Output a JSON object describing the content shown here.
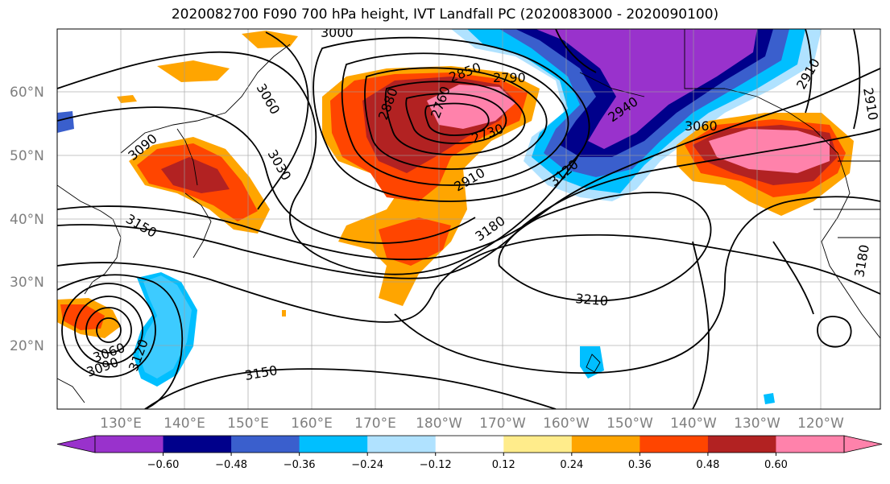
{
  "title": "2020082700 F090 700 hPa height, IVT Landfall PC (2020083000 - 2020090100)",
  "latitudes": [
    "60°N",
    "50°N",
    "40°N",
    "30°N",
    "20°N"
  ],
  "longitudes": [
    "130°E",
    "140°E",
    "150°E",
    "160°E",
    "170°E",
    "180°W",
    "170°W",
    "160°W",
    "150°W",
    "140°W",
    "130°W",
    "120°W"
  ],
  "colorbar": {
    "colors": [
      "#9932cc",
      "#00008b",
      "#3a5fcd",
      "#00bfff",
      "#b0e2ff",
      "#ffffff",
      "#ffec8b",
      "#ffa500",
      "#ff4500",
      "#b22222",
      "#ff82ab"
    ],
    "under_color": "#9932cc",
    "over_color": "#ff82ab",
    "tick_labels": [
      "−0.60",
      "−0.48",
      "−0.36",
      "−0.24",
      "−0.12",
      "0.12",
      "0.24",
      "0.36",
      "0.48",
      "0.60"
    ]
  },
  "contour_labels": [
    "3000",
    "3060",
    "3030",
    "3090",
    "3150",
    "2880",
    "2850",
    "2790",
    "2760",
    "2730",
    "2910",
    "3180",
    "2940",
    "3120",
    "3210",
    "3060",
    "2910",
    "2910",
    "3060",
    "3090",
    "3120",
    "3150",
    "3180"
  ]
}
